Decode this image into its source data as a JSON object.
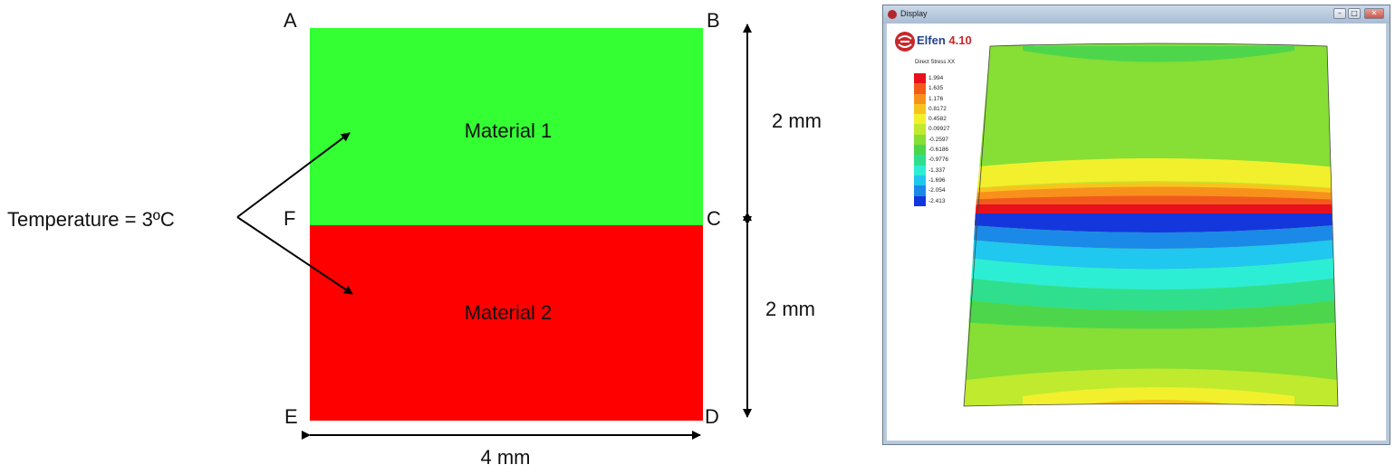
{
  "diagram": {
    "corners": {
      "a": "A",
      "b": "B",
      "c": "C",
      "d": "D",
      "e": "E",
      "f": "F"
    },
    "materials": [
      {
        "label": "Material 1",
        "color": "#33ff33"
      },
      {
        "label": "Material 2",
        "color": "#ff0000"
      }
    ],
    "temperature_label": "Temperature = 3ºC",
    "dim_upper": "2 mm",
    "dim_lower": "2 mm",
    "dim_width": "4 mm"
  },
  "window": {
    "title": "Display",
    "logo_name": "Elfen",
    "logo_version": "4.10",
    "legend_title": "Direct Stress XX",
    "legend": [
      {
        "value": "1.994",
        "color": "#e8101c"
      },
      {
        "value": "1.635",
        "color": "#f25a1c"
      },
      {
        "value": "1.176",
        "color": "#f8911c"
      },
      {
        "value": "0.8172",
        "color": "#f7c41e"
      },
      {
        "value": "0.4582",
        "color": "#f2f02c"
      },
      {
        "value": "0.09927",
        "color": "#c0ea2e"
      },
      {
        "value": "-0.2597",
        "color": "#87de34"
      },
      {
        "value": "-0.6186",
        "color": "#4dd64b"
      },
      {
        "value": "-0.9776",
        "color": "#2fdf8e"
      },
      {
        "value": "-1.337",
        "color": "#2ceed5"
      },
      {
        "value": "-1.696",
        "color": "#20c7ee"
      },
      {
        "value": "-2.054",
        "color": "#1b89e8"
      },
      {
        "value": "-2.413",
        "color": "#1436dd"
      }
    ]
  }
}
